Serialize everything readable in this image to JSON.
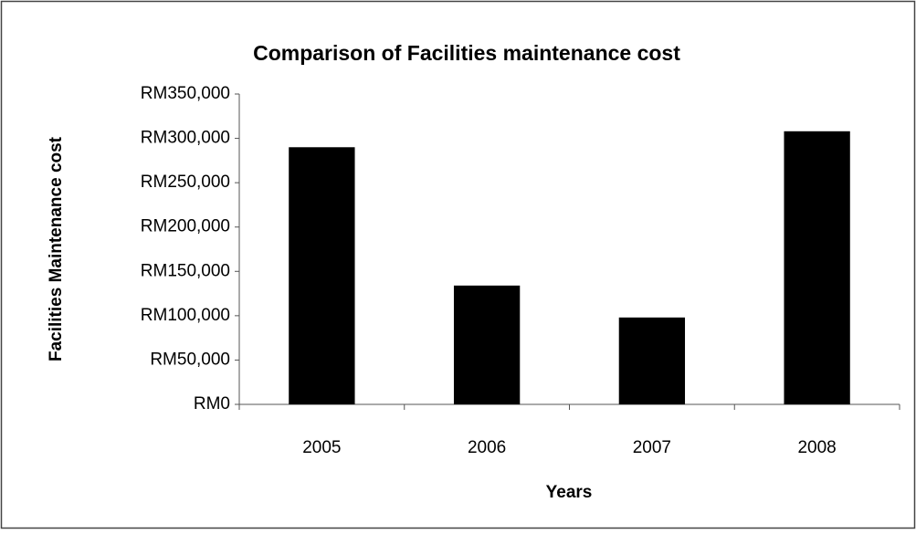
{
  "chart_data": {
    "type": "bar",
    "title": "Comparison of Facilities maintenance cost",
    "x_label": "Years",
    "y_label": "Facilities Maintenance cost",
    "categories": [
      "2005",
      "2006",
      "2007",
      "2008"
    ],
    "values": [
      290000,
      134000,
      98000,
      308000
    ],
    "color": "#000000",
    "ylim": [
      0,
      350000
    ],
    "yticks": [
      {
        "value": 0,
        "label": "RM0"
      },
      {
        "value": 50000,
        "label": "RM50,000"
      },
      {
        "value": 100000,
        "label": "RM100,000"
      },
      {
        "value": 150000,
        "label": "RM150,000"
      },
      {
        "value": 200000,
        "label": "RM200,000"
      },
      {
        "value": 250000,
        "label": "RM250,000"
      },
      {
        "value": 300000,
        "label": "RM300,000"
      },
      {
        "value": 350000,
        "label": "RM350,000"
      }
    ],
    "grid": false
  }
}
